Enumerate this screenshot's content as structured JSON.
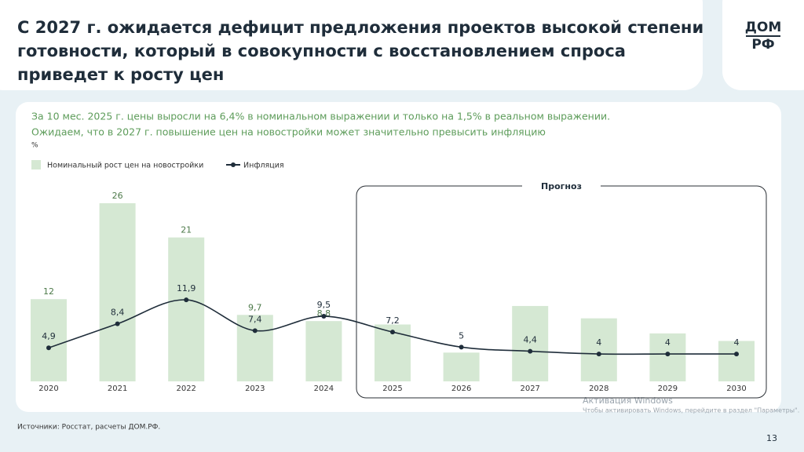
{
  "header": {
    "title": [
      "С 2027 г. ожидается дефицит предложения проектов высокой степени",
      "готовности, который в совокупности с восстановлением спроса",
      "приведет к росту цен"
    ],
    "logo": [
      "ДОМ",
      "РФ"
    ]
  },
  "chart_data": {
    "type": "bar",
    "subtitle": [
      "За 10 мес. 2025 г. цены выросли на 6,4% в номинальном выражении и только на 1,5% в реальном выражении.",
      "Ожидаем, что в 2027 г. повышение цен на новостройки может значительно превысить инфляцию"
    ],
    "unit": "%",
    "categories": [
      "2020",
      "2021",
      "2022",
      "2023",
      "2024",
      "2025",
      "2026",
      "2027",
      "2028",
      "2029",
      "2030"
    ],
    "series": [
      {
        "name": "Номинальный рост цен на новостройки",
        "type": "bar",
        "color": "#d5e8d3",
        "values": [
          12,
          26,
          21,
          9.7,
          8.8,
          8.3,
          4.2,
          11,
          9.2,
          7,
          5.9
        ],
        "value_labels": [
          "12",
          "26",
          "21",
          "9,7",
          "8,8",
          null,
          null,
          null,
          null,
          null,
          null
        ]
      },
      {
        "name": "Инфляция",
        "type": "line",
        "color": "#1f2d3a",
        "values": [
          4.9,
          8.4,
          11.9,
          7.4,
          9.5,
          7.2,
          5,
          4.4,
          4,
          4,
          4
        ],
        "value_labels": [
          "4,9",
          "8,4",
          "11,9",
          "7,4",
          "9,5",
          "7,2",
          "5",
          "4,4",
          "4",
          "4",
          "4"
        ]
      }
    ],
    "ylim": [
      0,
      30
    ],
    "annotation": "Прогноз"
  },
  "source": "Источники: Росстат, расчеты ДОМ.РФ.",
  "page_number": "13",
  "watermark": [
    "Активация Windows",
    "Чтобы активировать Windows, перейдите в раздел \"Параметры\"."
  ]
}
